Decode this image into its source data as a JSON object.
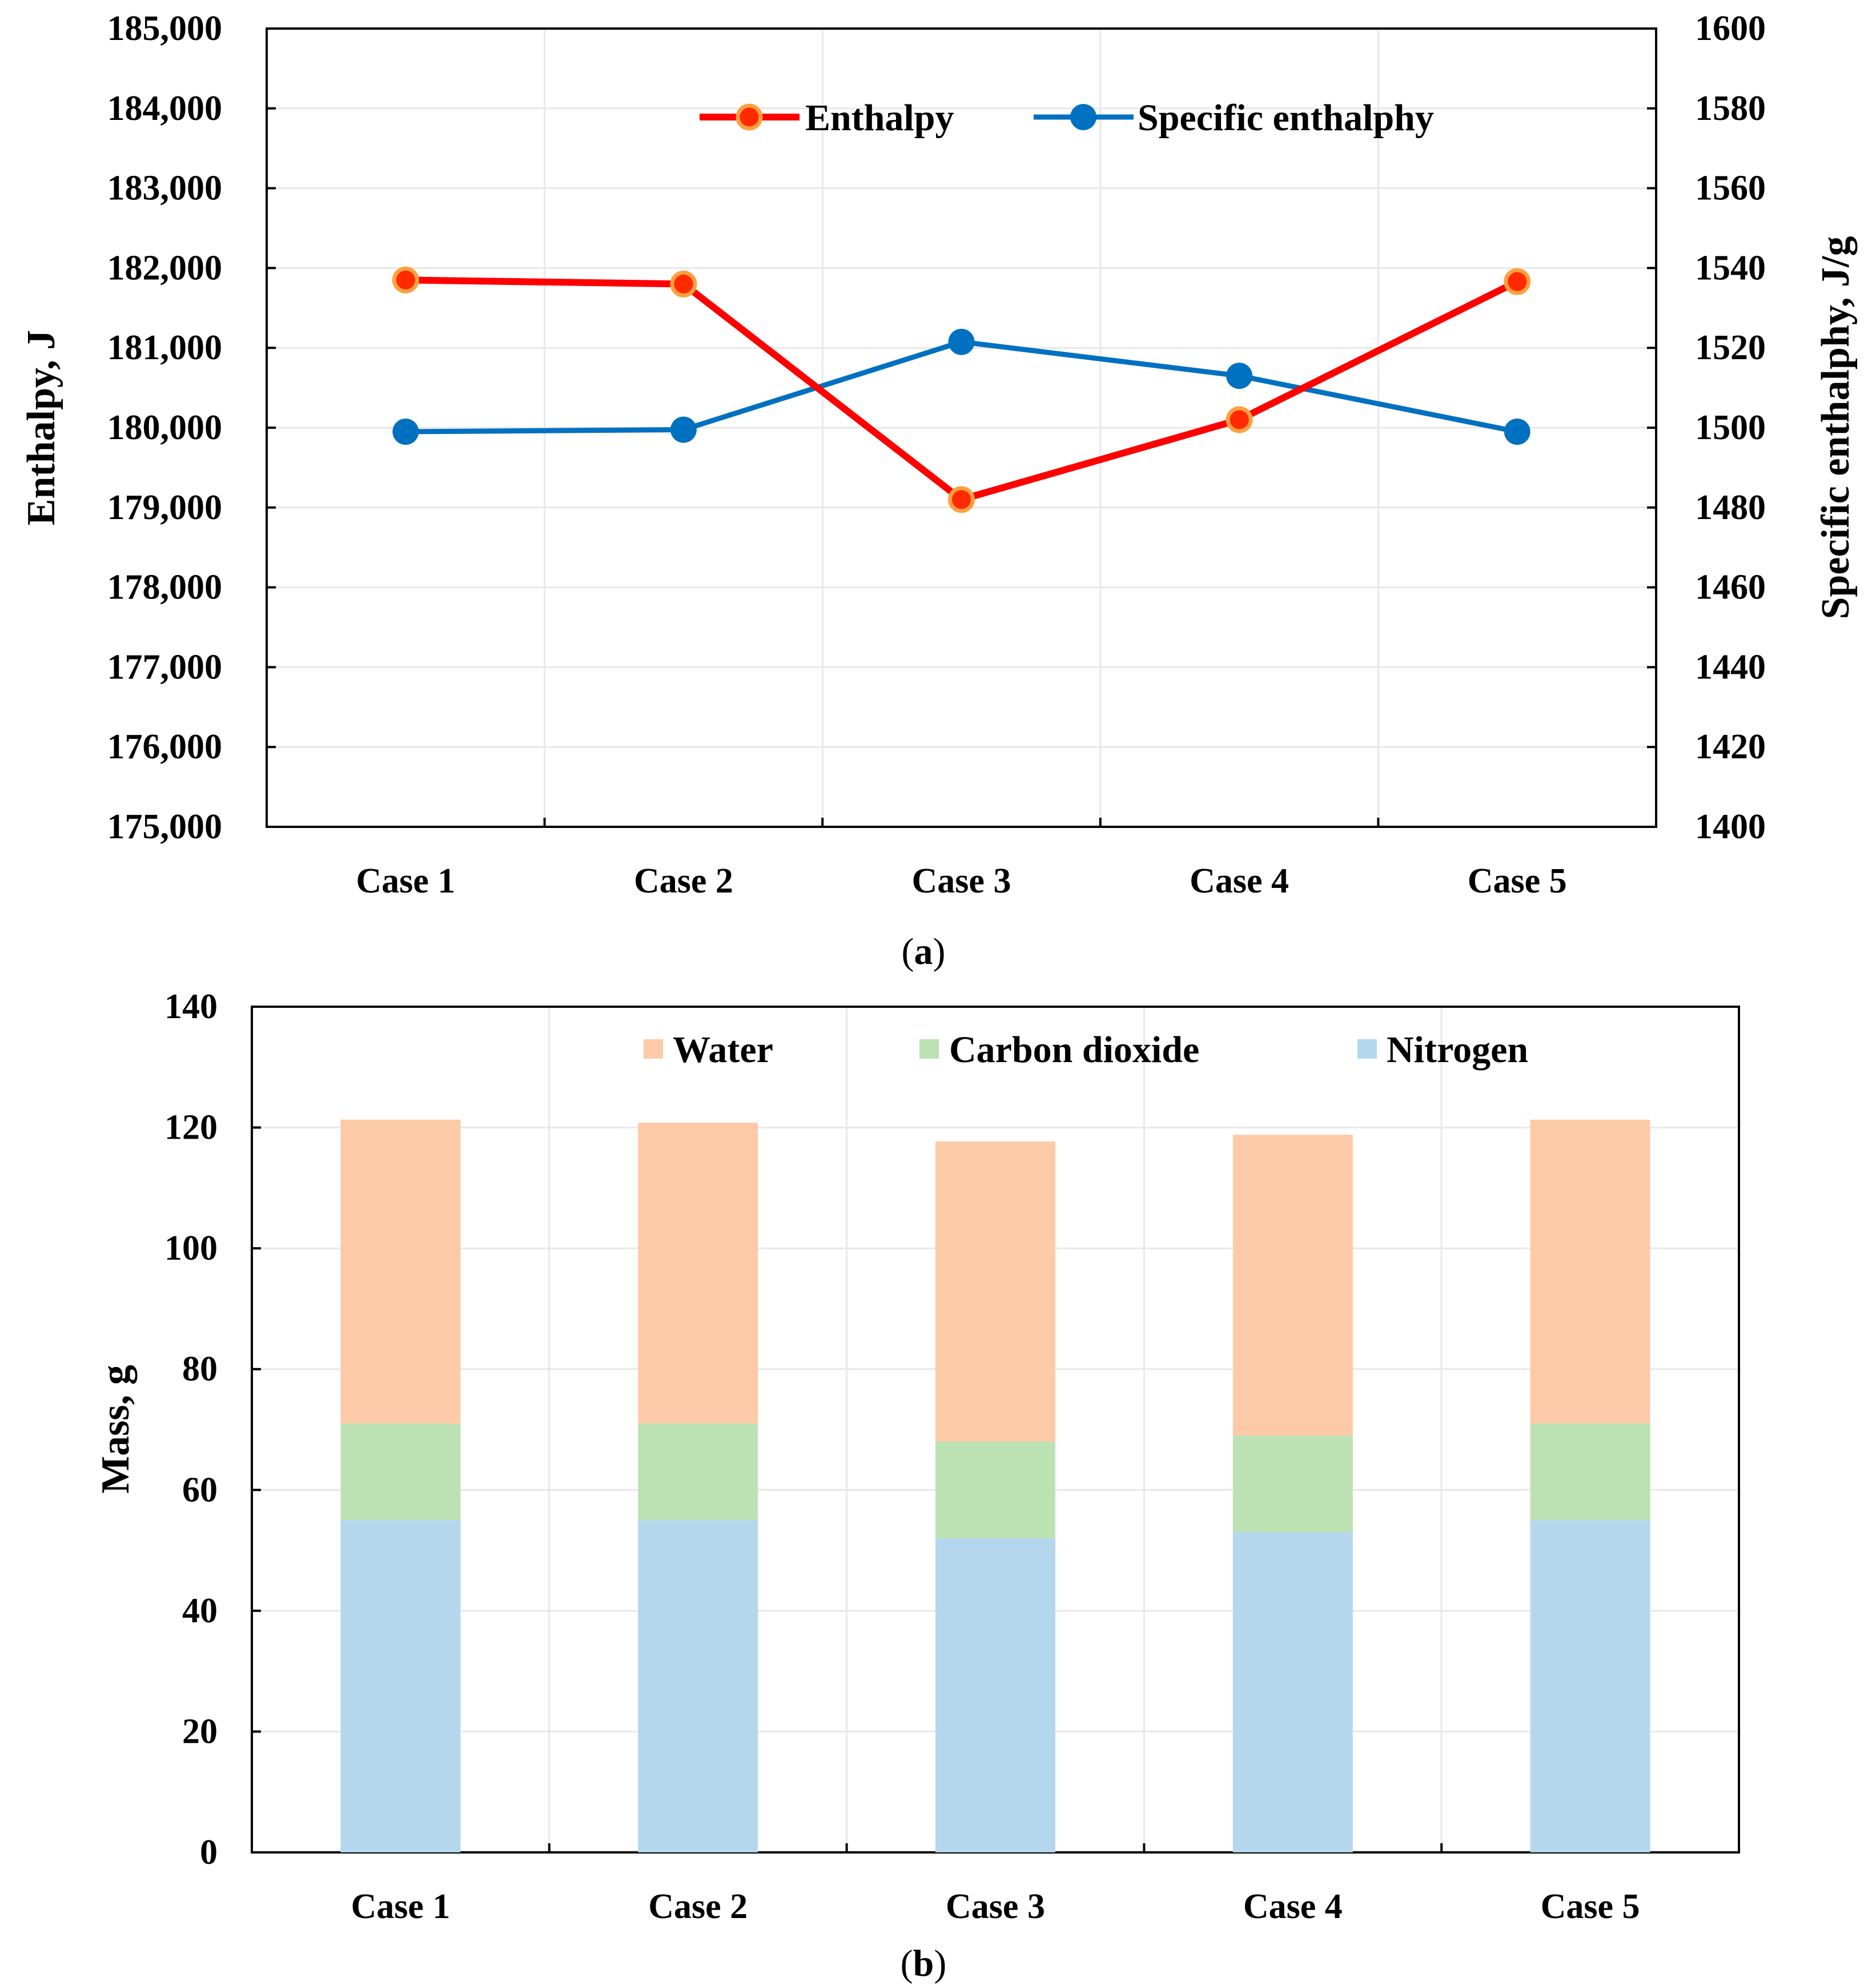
{
  "chart_data": [
    {
      "type": "line",
      "caption_prefix": "(",
      "caption_letter": "a",
      "caption_suffix": ")",
      "categories": [
        "Case 1",
        "Case 2",
        "Case 3",
        "Case 4",
        "Case 5"
      ],
      "y_left": {
        "label": "Enthalpy, J",
        "ylim": [
          175000,
          185000
        ],
        "ticks": [
          "175,000",
          "176,000",
          "177,000",
          "178,000",
          "179,000",
          "180,000",
          "181,000",
          "182,000",
          "183,000",
          "184,000",
          "185,000"
        ]
      },
      "y_right": {
        "label": "Specific enthalphy, J/g",
        "ylim": [
          1400,
          1600
        ],
        "ticks": [
          "1400",
          "1420",
          "1440",
          "1460",
          "1480",
          "1500",
          "1520",
          "1540",
          "1560",
          "1580",
          "1600"
        ]
      },
      "series": [
        {
          "name": "Enthalpy",
          "axis": "left",
          "color": "#ff0000",
          "marker_fill": "#ff2a00",
          "marker_edge": "#ffa040",
          "values": [
            181850,
            181800,
            179100,
            180100,
            181830
          ]
        },
        {
          "name": "Specific enthalphy",
          "axis": "right",
          "color": "#0070c0",
          "marker_fill": "#0070c0",
          "marker_edge": "#0070c0",
          "values": [
            1499,
            1499.5,
            1521.5,
            1513,
            1499
          ]
        }
      ],
      "legend_position": "top-center",
      "grid": true
    },
    {
      "type": "bar",
      "stacked": true,
      "caption_prefix": "(",
      "caption_letter": "b",
      "caption_suffix": ")",
      "categories": [
        "Case 1",
        "Case 2",
        "Case 3",
        "Case 4",
        "Case 5"
      ],
      "ylabel": "Mass, g",
      "ylim": [
        0,
        140
      ],
      "yticks": [
        "0",
        "20",
        "40",
        "60",
        "80",
        "100",
        "120",
        "140"
      ],
      "series": [
        {
          "name": "Nitrogen",
          "color": "#b4d7ee",
          "values": [
            55,
            55,
            52,
            53,
            55
          ]
        },
        {
          "name": "Carbon dioxide",
          "color": "#bce2b4",
          "values": [
            16,
            16,
            16,
            16,
            16
          ]
        },
        {
          "name": "Water",
          "color": "#fdcaa8",
          "values": [
            50.3,
            49.8,
            49.7,
            49.8,
            50.3
          ]
        }
      ],
      "legend_order": [
        "Water",
        "Carbon dioxide",
        "Nitrogen"
      ],
      "legend_position": "top-center",
      "grid": true
    }
  ]
}
